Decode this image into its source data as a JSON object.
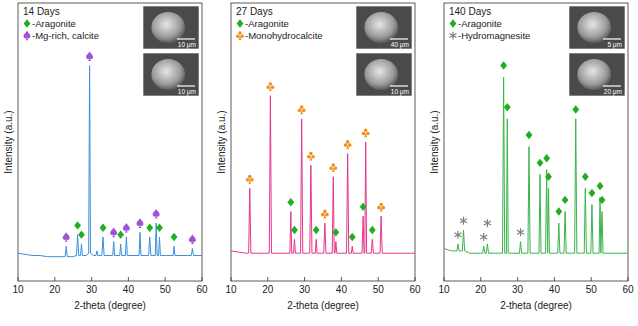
{
  "chart_data": [
    {
      "type": "line",
      "title": "14 Days",
      "xlabel": "2-theta (degree)",
      "ylabel": "Intensity (a.u.)",
      "xlim": [
        10,
        60
      ],
      "xticks": [
        10,
        20,
        30,
        40,
        50,
        60
      ],
      "ylim": [
        0,
        120
      ],
      "tick_labels": "x",
      "annotations": [
        "10 μm",
        "10 μm"
      ],
      "series": [
        {
          "type": "line",
          "color": "#3b8fde",
          "x": [
            10,
            12,
            14,
            16,
            18,
            20,
            22,
            22.8,
            23.1,
            23.4,
            25,
            25.9,
            26.2,
            26.5,
            27.0,
            27.25,
            27.5,
            28.5,
            29.2,
            29.45,
            29.7,
            30.5,
            31.2,
            31.45,
            31.7,
            32.8,
            33.1,
            33.4,
            35.0,
            35.75,
            36.0,
            36.25,
            37.65,
            37.9,
            38.15,
            39.2,
            39.45,
            39.7,
            42.9,
            43.15,
            43.4,
            45.5,
            45.8,
            46.1,
            47.3,
            47.55,
            47.8,
            48.2,
            48.45,
            48.7,
            50.0,
            52.15,
            52.4,
            52.65,
            56.0,
            57.1,
            57.4,
            57.7,
            60
          ],
          "values": [
            12,
            11.5,
            11,
            11,
            10.5,
            10.5,
            10.5,
            10.5,
            15,
            10.5,
            10.5,
            11,
            20,
            11,
            11,
            16,
            11,
            11,
            12,
            93,
            12,
            11,
            11,
            13,
            11,
            11,
            19,
            11,
            11,
            11,
            17,
            11,
            11,
            16,
            11,
            11,
            19,
            11,
            11,
            21,
            11,
            11,
            19,
            11,
            11,
            25,
            11,
            11,
            19,
            11,
            11,
            11,
            15,
            11,
            11,
            11,
            14,
            11,
            11
          ]
        },
        {
          "name": "-Aragonite",
          "type": "scatter",
          "marker": "diamond",
          "color": "#1fae1f",
          "x": [
            26.2,
            27.25,
            33.1,
            37.9,
            45.8,
            48.45,
            52.4
          ],
          "values": [
            24,
            20,
            23,
            20,
            23,
            23,
            19
          ]
        },
        {
          "name": "-Mg-rich, calcite",
          "type": "scatter",
          "marker": "spade",
          "color": "#a152d6",
          "x": [
            23.1,
            29.45,
            36.0,
            39.45,
            43.15,
            47.55,
            57.4
          ],
          "values": [
            19,
            97,
            21,
            23,
            25,
            29,
            18
          ]
        }
      ]
    },
    {
      "type": "line",
      "title": "27 Days",
      "xlabel": "2-theta (degree)",
      "ylabel": "Intensity (a.u.)",
      "xlim": [
        10,
        60
      ],
      "xticks": [
        10,
        20,
        30,
        40,
        50,
        60
      ],
      "ylim": [
        0,
        120
      ],
      "tick_labels": "x",
      "annotations": [
        "40 μm",
        "10 μm"
      ],
      "series": [
        {
          "type": "line",
          "color": "#e6358b",
          "x": [
            10,
            12,
            14,
            14.8,
            15.1,
            15.4,
            17,
            19,
            20.4,
            20.7,
            21.0,
            23,
            25,
            26.0,
            26.25,
            26.5,
            27.0,
            27.25,
            27.5,
            28.9,
            29.2,
            29.5,
            31.4,
            31.7,
            32.0,
            32.9,
            33.15,
            33.4,
            35.2,
            35.5,
            35.8,
            37.5,
            37.8,
            38.05,
            38.25,
            38.5,
            38.75,
            41.4,
            41.7,
            42.0,
            42.7,
            42.95,
            43.2,
            45.6,
            45.9,
            46.15,
            46.35,
            46.6,
            46.85,
            48.1,
            48.4,
            48.7,
            50.5,
            50.8,
            51.1,
            55,
            60
          ],
          "values": [
            13,
            12.5,
            12,
            12,
            40,
            12,
            12,
            12,
            12,
            80,
            12,
            12,
            12,
            12,
            30,
            12,
            12,
            18,
            12,
            12,
            70,
            12,
            12,
            50,
            12,
            12,
            18,
            12,
            12,
            25,
            12,
            12,
            45,
            12,
            12,
            17,
            12,
            12,
            55,
            12,
            12,
            15,
            12,
            12,
            28,
            12,
            12,
            60,
            12,
            12,
            18,
            12,
            12,
            28,
            12,
            12,
            12
          ]
        },
        {
          "name": "-Aragonite",
          "type": "scatter",
          "marker": "diamond",
          "color": "#1fae1f",
          "x": [
            26.25,
            27.25,
            33.15,
            38.5,
            42.95,
            45.9,
            48.4
          ],
          "values": [
            34,
            22,
            22,
            21,
            19,
            32,
            22
          ]
        },
        {
          "name": "-Monohydrocalcite",
          "type": "scatter",
          "marker": "club",
          "color": "#f0901e",
          "x": [
            15.1,
            20.7,
            29.2,
            31.7,
            35.5,
            37.8,
            41.7,
            46.6,
            50.8
          ],
          "values": [
            44,
            84,
            74,
            54,
            29,
            49,
            59,
            64,
            32
          ]
        }
      ]
    },
    {
      "type": "line",
      "title": "140 Days",
      "xlabel": "2-theta (degree)",
      "ylabel": "Intensity (a.u.)",
      "xlim": [
        10,
        60
      ],
      "xticks": [
        10,
        20,
        30,
        40,
        50,
        60
      ],
      "ylim": [
        0,
        120
      ],
      "tick_labels": "x",
      "annotations": [
        "5 μm",
        "20 μm"
      ],
      "series": [
        {
          "type": "line",
          "color": "#39b54a",
          "x": [
            10,
            12,
            13.5,
            13.8,
            14.1,
            15.0,
            15.3,
            15.6,
            17,
            19,
            20.5,
            20.8,
            21.1,
            21.5,
            21.8,
            22.1,
            24,
            25.9,
            26.2,
            26.5,
            26.95,
            27.2,
            27.45,
            30.5,
            30.8,
            31.1,
            32.8,
            33.1,
            33.4,
            35.8,
            36.1,
            36.35,
            37.6,
            37.9,
            38.15,
            38.4,
            38.65,
            40.9,
            41.2,
            41.5,
            42.6,
            42.9,
            43.2,
            45.5,
            45.8,
            46.1,
            48.1,
            48.4,
            48.7,
            49.9,
            50.2,
            50.5,
            52.15,
            52.4,
            52.62,
            52.95,
            53.2,
            60
          ],
          "values": [
            14,
            13,
            13,
            16,
            13,
            13,
            22,
            13,
            12,
            12,
            12,
            15,
            12,
            12,
            16,
            12,
            12,
            12,
            88,
            12,
            12,
            70,
            12,
            12,
            17,
            12,
            12,
            58,
            12,
            12,
            46,
            12,
            12,
            48,
            12,
            40,
            12,
            12,
            25,
            12,
            12,
            30,
            12,
            12,
            70,
            12,
            12,
            40,
            12,
            12,
            33,
            12,
            12,
            36,
            12,
            30,
            12,
            12
          ]
        },
        {
          "name": "-Aragonite",
          "type": "scatter",
          "marker": "diamond",
          "color": "#1fae1f",
          "x": [
            26.2,
            27.2,
            33.1,
            36.1,
            37.9,
            38.4,
            41.2,
            42.9,
            45.8,
            48.4,
            50.2,
            52.4,
            52.95
          ],
          "values": [
            93,
            75,
            63,
            51,
            53,
            45,
            30,
            35,
            74,
            45,
            38,
            41,
            35
          ]
        },
        {
          "name": "-Hydromagnesite",
          "type": "scatter",
          "marker": "asterisk",
          "color": "#7f7f7f",
          "x": [
            13.8,
            15.3,
            20.8,
            21.8,
            30.8
          ],
          "values": [
            20,
            26,
            19,
            25,
            21
          ]
        }
      ]
    }
  ]
}
